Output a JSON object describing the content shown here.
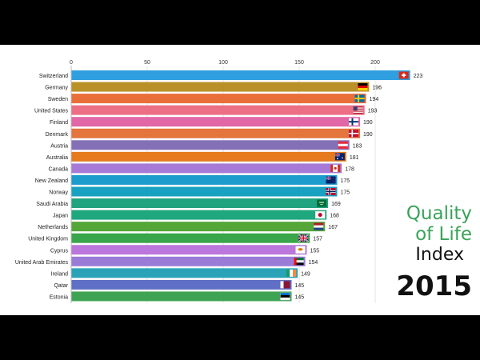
{
  "title": {
    "line1": "Quality",
    "line2": "of Life",
    "line3": "Index",
    "year": "2015"
  },
  "chart_data": {
    "type": "bar",
    "orientation": "horizontal",
    "xlim": [
      0,
      223
    ],
    "xticks": [
      0,
      50,
      100,
      150,
      200
    ],
    "xtick_position": "top",
    "grid": true,
    "categories": [
      "Switzerland",
      "Germany",
      "Sweden",
      "United States",
      "Finland",
      "Denmark",
      "Austria",
      "Australia",
      "Canada",
      "New Zealand",
      "Norway",
      "Saudi Arabia",
      "Japan",
      "Netherlands",
      "United Kingdom",
      "Cyprus",
      "United Arab Emirates",
      "Ireland",
      "Qatar",
      "Estonia"
    ],
    "values": [
      223,
      196,
      194,
      193,
      190,
      190,
      183,
      181,
      178,
      175,
      175,
      169,
      168,
      167,
      157,
      155,
      154,
      149,
      145,
      145
    ],
    "value_labels": [
      "223",
      "196",
      "194",
      "193",
      "190",
      "190",
      "183",
      "181",
      "178",
      "175",
      "175",
      "169",
      "168",
      "167",
      "157",
      "155",
      "154",
      "149",
      "145",
      "145"
    ],
    "colors": [
      "#2f9fe0",
      "#ba9128",
      "#e96f3a",
      "#ec6f86",
      "#e167a6",
      "#e3753d",
      "#8470b6",
      "#e57a1e",
      "#a67ad6",
      "#1b9ccc",
      "#18a1c1",
      "#20a37f",
      "#1fa77e",
      "#55a639",
      "#39a64b",
      "#bb77db",
      "#9b7bd8",
      "#2aa3b8",
      "#5f6fc6",
      "#3fa354"
    ],
    "flags": [
      "switzerland-flag-icon",
      "germany-flag-icon",
      "sweden-flag-icon",
      "united-states-flag-icon",
      "finland-flag-icon",
      "denmark-flag-icon",
      "austria-flag-icon",
      "australia-flag-icon",
      "canada-flag-icon",
      "new-zealand-flag-icon",
      "norway-flag-icon",
      "saudi-arabia-flag-icon",
      "japan-flag-icon",
      "netherlands-flag-icon",
      "united-kingdom-flag-icon",
      "cyprus-flag-icon",
      "uae-flag-icon",
      "ireland-flag-icon",
      "qatar-flag-icon",
      "estonia-flag-icon"
    ]
  }
}
